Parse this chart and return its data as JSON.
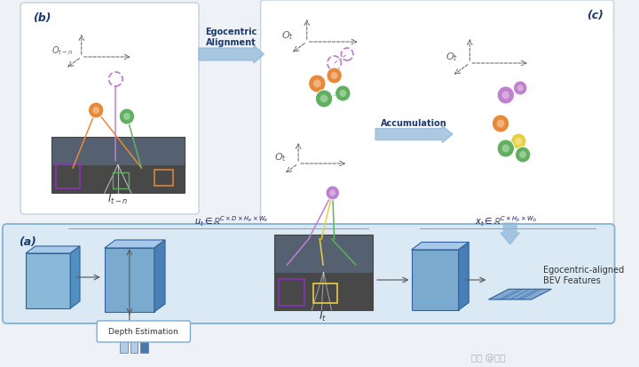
{
  "bg_color": "#eef2f7",
  "panel_bg": "#ffffff",
  "panel_border": "#c8d4e0",
  "bottom_panel_bg": "#d8e8f5",
  "bottom_panel_border": "#7aabcf",
  "arrow_blue": "#90b8d8",
  "title_color": "#1a3a6e",
  "watermark": "知乎 @黄沿",
  "egocentric_label": "Egocentric\nAlignment",
  "accumulation_label": "Accumulation",
  "panel_b_label": "(b)",
  "panel_c_label": "(c)",
  "panel_a_label": "(a)",
  "it_n_label": "$I_{t-n}$",
  "it_label": "$I_t$",
  "ot_n_label": "$O_{t-n}$",
  "ot_label": "$O_t$",
  "depth_label": "Depth Estimation",
  "bev_label": "Egocentric-aligned\nBEV Features",
  "ut_label": "$u_t \\in \\mathbb{R}^{C\\times D\\times H_e\\times W_e}$",
  "xt_label": "$x_t \\in \\mathbb{R}^{C\\times H_b\\times W_b}$",
  "orange_color": "#e8893a",
  "green_color": "#60b060",
  "purple_color": "#c080d0",
  "yellow_color": "#e8d040",
  "cube_light": "#a8c8e8",
  "cube_mid": "#7aabcf",
  "cube_dark": "#4a80b0",
  "flat_color": "#5080b0",
  "flat_light": "#80a8d0"
}
